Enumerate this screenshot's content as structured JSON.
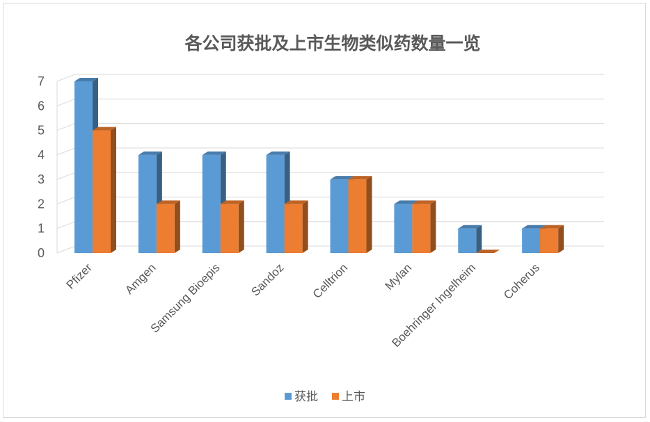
{
  "chart_data": {
    "type": "bar",
    "title": "各公司获批及上市生物类似药数量一览",
    "categories": [
      "Pfizer",
      "Amgen",
      "Samsung Bioepis",
      "Sandoz",
      "Celltrion",
      "Mylan",
      "Boehringer Ingelheim",
      "Coherus"
    ],
    "series": [
      {
        "name": "获批",
        "values": [
          7,
          4,
          4,
          4,
          3,
          2,
          1,
          1
        ],
        "color": "#5b9bd5"
      },
      {
        "name": "上市",
        "values": [
          5,
          2,
          2,
          2,
          3,
          2,
          0,
          1
        ],
        "color": "#ed7d31"
      }
    ],
    "yticks": [
      "0",
      "1",
      "2",
      "3",
      "4",
      "5",
      "6",
      "7"
    ],
    "ylim": [
      0,
      7
    ],
    "grid": true,
    "legend_position": "bottom",
    "style": "3d-clustered-column"
  }
}
